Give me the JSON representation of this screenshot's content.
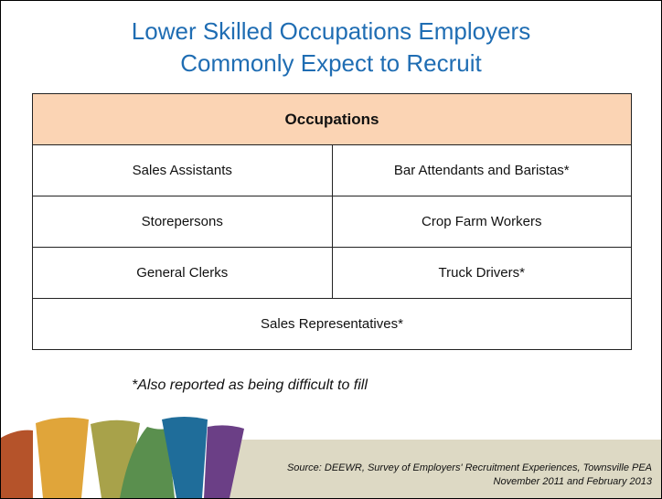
{
  "title": {
    "lines": [
      "Lower Skilled Occupations Employers",
      "Commonly Expect to Recruit"
    ]
  },
  "table": {
    "header": "Occupations",
    "rows": [
      [
        "Sales Assistants",
        "Bar Attendants and Baristas*"
      ],
      [
        "Storepersons",
        "Crop Farm Workers"
      ],
      [
        "General Clerks",
        "Truck Drivers*"
      ],
      [
        "Sales Representatives*"
      ]
    ]
  },
  "footnote": "*Also reported as being difficult to fill",
  "source": {
    "lines": [
      "Source: DEEWR, Survey of Employers' Recruitment Experiences, Townsville PEA",
      "November 2011 and February 2013"
    ]
  }
}
